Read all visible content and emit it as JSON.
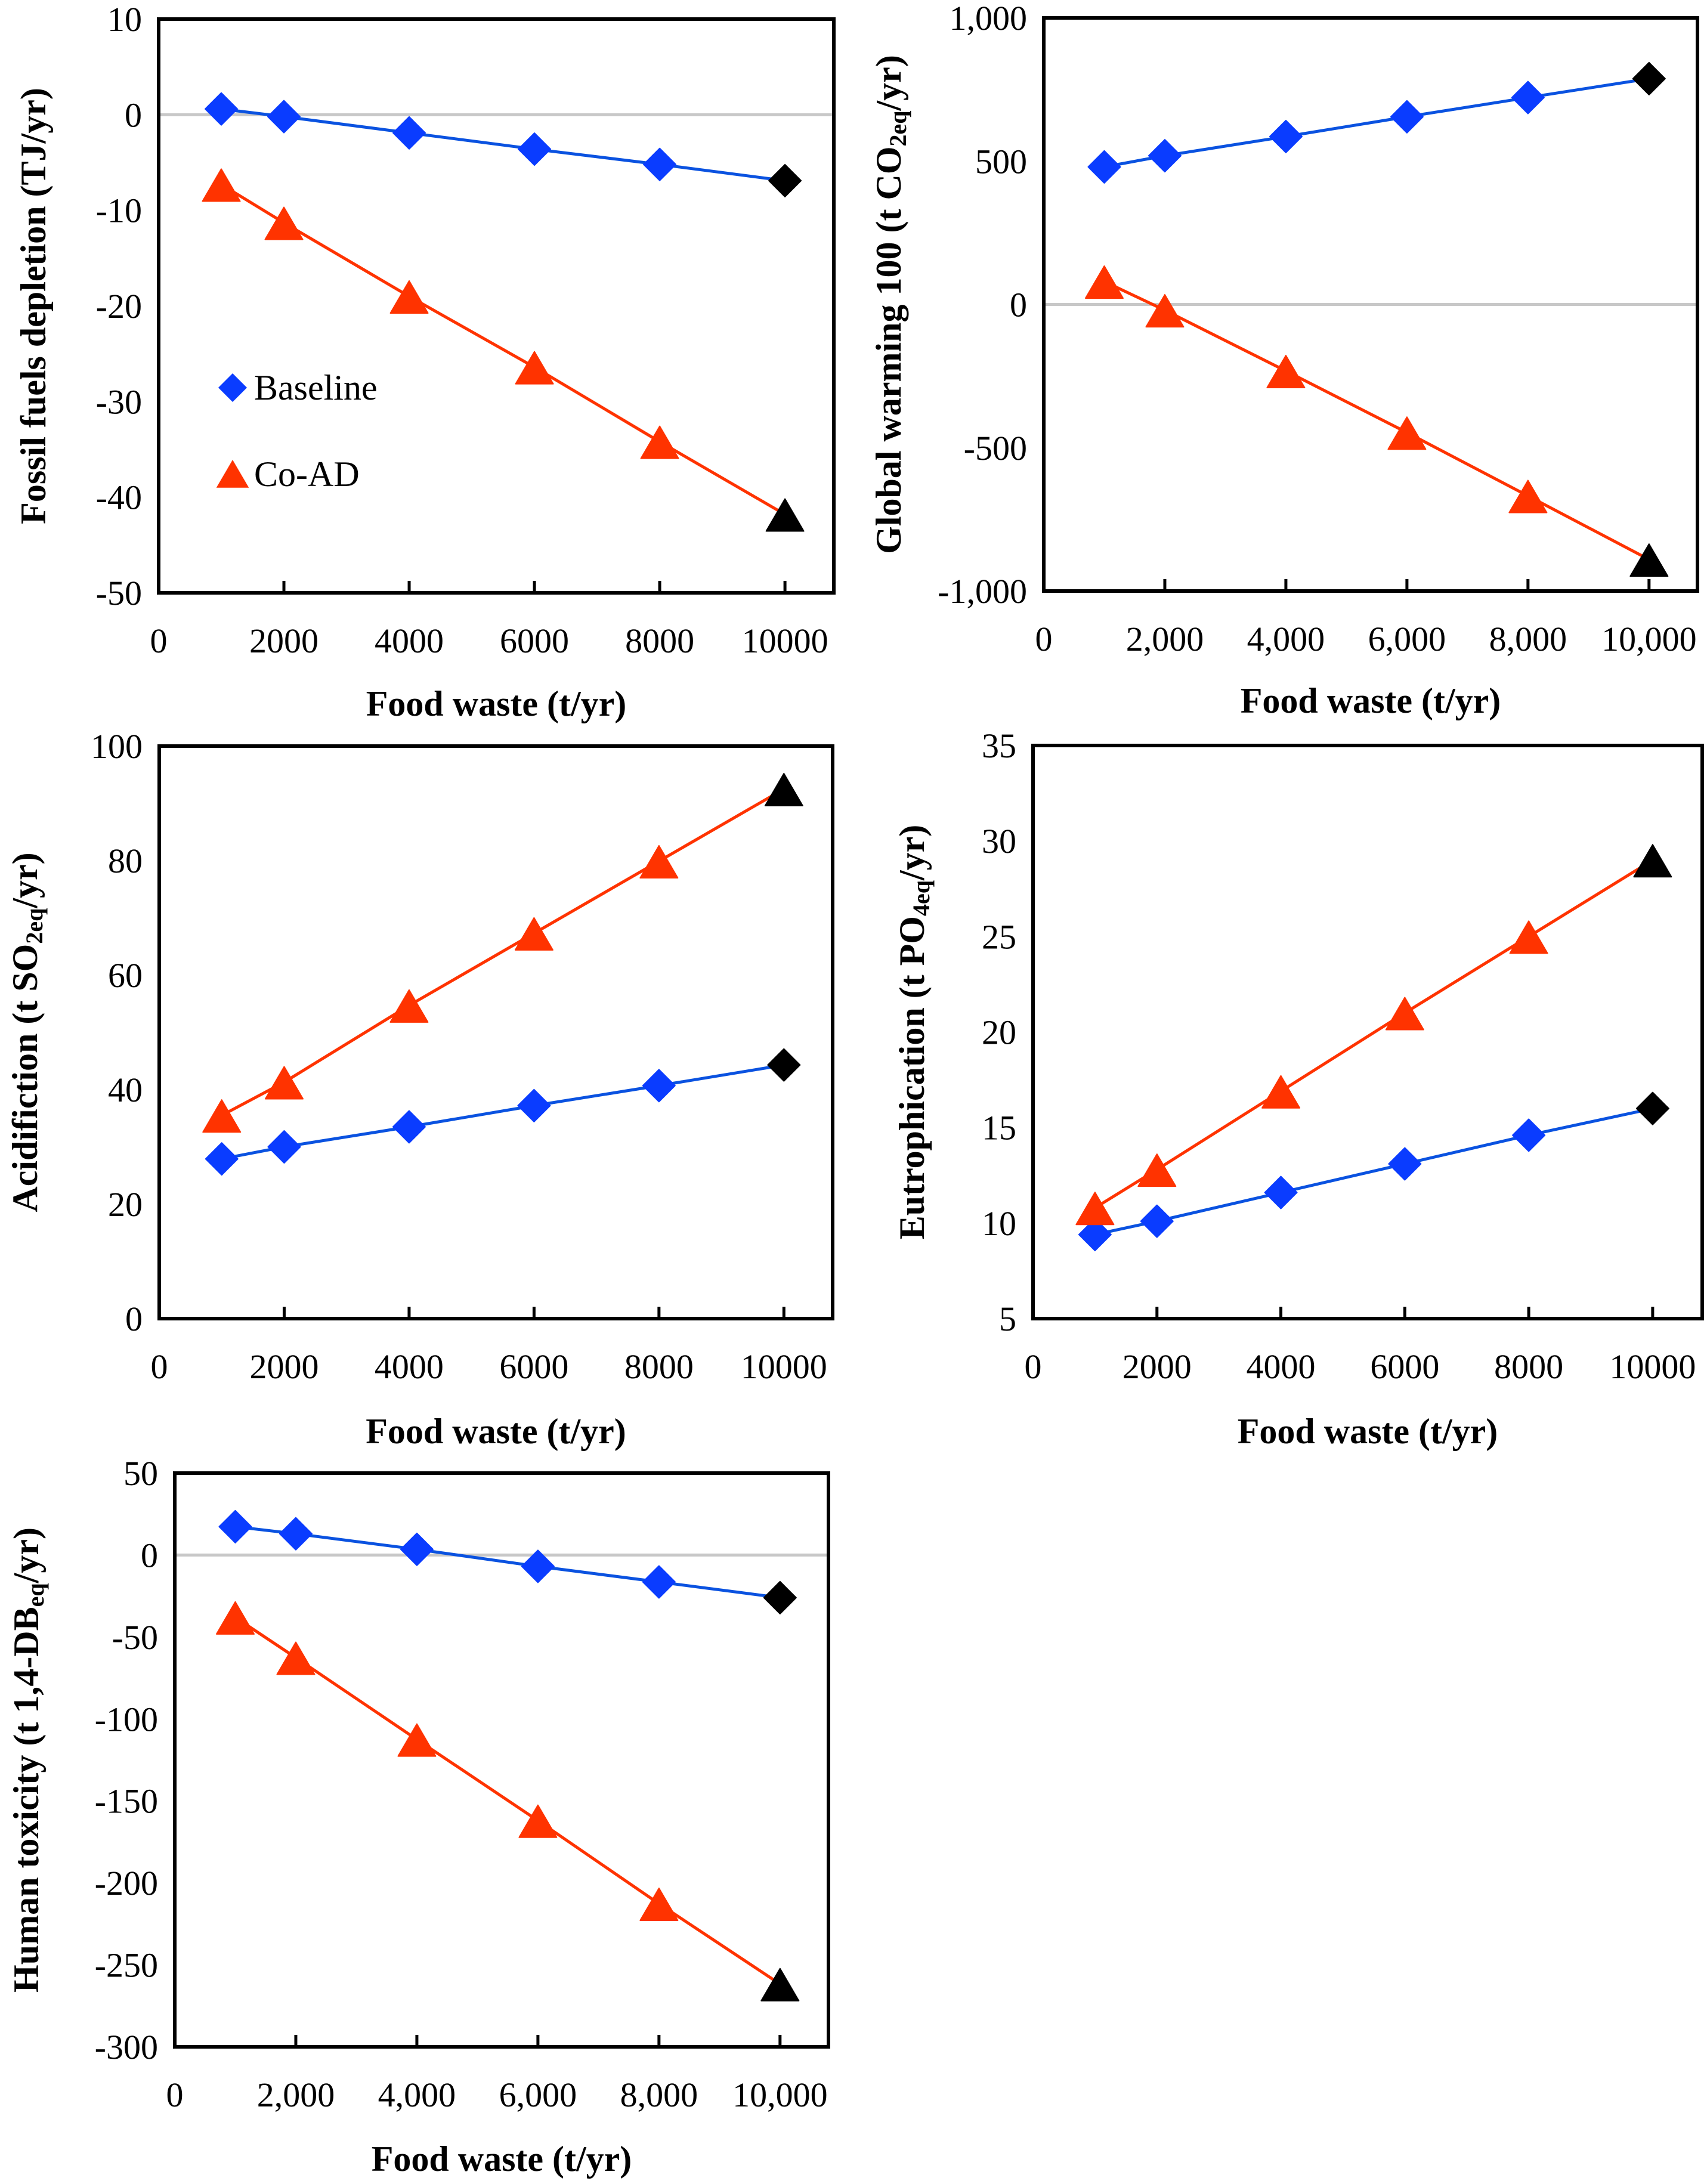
{
  "figure": {
    "colors": {
      "baseline": "#0a3cff",
      "baseline_line": "#0a52e0",
      "coad": "#ff3300",
      "highlight": "#000000",
      "zero_line": "#c8c8c8",
      "frame": "#000000"
    },
    "legend": {
      "items": [
        {
          "label": "Baseline",
          "marker": "diamond"
        },
        {
          "label": "Co-AD",
          "marker": "triangle"
        }
      ]
    }
  },
  "chart_data": [
    {
      "id": "fossil",
      "type": "line",
      "title": "",
      "xlabel": "Food waste (t/yr)",
      "ylabel": {
        "pre": "Fossil fuels depletion (TJ/yr)",
        "sub": "",
        "post": ""
      },
      "xlim": [
        0,
        10780
      ],
      "ylim": [
        -50,
        10
      ],
      "xticks": [
        0,
        2000,
        4000,
        6000,
        8000,
        10000
      ],
      "xtick_labels": [
        "0",
        "2000",
        "4000",
        "6000",
        "8000",
        "10000"
      ],
      "yticks": [
        10,
        0,
        -10,
        -20,
        -30,
        -40,
        -50
      ],
      "ytick_labels": [
        "10",
        "0",
        "-10",
        "-20",
        "-30",
        "-40",
        "-50"
      ],
      "zero_line": true,
      "legend": "inside-left",
      "x": [
        1000,
        2000,
        4000,
        6000,
        8000,
        10000
      ],
      "series": [
        {
          "name": "Baseline",
          "marker": "diamond",
          "values": [
            0.6,
            -0.2,
            -1.9,
            -3.6,
            -5.2,
            -6.9
          ]
        },
        {
          "name": "Co-AD",
          "marker": "triangle",
          "values": [
            -7.3,
            -11.3,
            -19.0,
            -26.4,
            -34.2,
            -41.8
          ]
        }
      ],
      "highlight_last_point": true
    },
    {
      "id": "gwp",
      "type": "line",
      "title": "",
      "xlabel": "Food waste (t/yr)",
      "ylabel": {
        "pre": "Global warming 100 (t CO",
        "sub": "2eq",
        "post": "/yr)"
      },
      "xlim": [
        0,
        10800
      ],
      "ylim": [
        -1000,
        1000
      ],
      "xticks": [
        0,
        2000,
        4000,
        6000,
        8000,
        10000
      ],
      "xtick_labels": [
        "0",
        "2,000",
        "4,000",
        "6,000",
        "8,000",
        "10,000"
      ],
      "yticks": [
        1000,
        500,
        0,
        -500,
        -1000
      ],
      "ytick_labels": [
        "1,000",
        "500",
        "0",
        "-500",
        "-1,000"
      ],
      "zero_line": true,
      "x": [
        1000,
        2000,
        4000,
        6000,
        8000,
        10000
      ],
      "series": [
        {
          "name": "Baseline",
          "marker": "diamond",
          "values": [
            480,
            519,
            586,
            655,
            722,
            788
          ]
        },
        {
          "name": "Co-AD",
          "marker": "triangle",
          "values": [
            80,
            -20,
            -232,
            -447,
            -668,
            -890
          ]
        }
      ],
      "highlight_last_point": true
    },
    {
      "id": "acid",
      "type": "line",
      "title": "",
      "xlabel": "Food waste (t/yr)",
      "ylabel": {
        "pre": "Acidifiction (t SO",
        "sub": "2eq",
        "post": "/yr)"
      },
      "xlim": [
        0,
        10780
      ],
      "ylim": [
        0,
        100
      ],
      "xticks": [
        0,
        2000,
        4000,
        6000,
        8000,
        10000
      ],
      "xtick_labels": [
        "0",
        "2000",
        "4000",
        "6000",
        "8000",
        "10000"
      ],
      "yticks": [
        100,
        80,
        60,
        40,
        20,
        0
      ],
      "ytick_labels": [
        "100",
        "80",
        "60",
        "40",
        "20",
        "0"
      ],
      "zero_line": false,
      "x": [
        1000,
        2000,
        4000,
        6000,
        8000,
        10000
      ],
      "series": [
        {
          "name": "Baseline",
          "marker": "diamond",
          "values": [
            27.9,
            30.0,
            33.5,
            37.2,
            40.7,
            44.3
          ]
        },
        {
          "name": "Co-AD",
          "marker": "triangle",
          "values": [
            35.5,
            41.3,
            54.7,
            67.3,
            79.9,
            92.5
          ]
        }
      ],
      "highlight_last_point": true
    },
    {
      "id": "eutro",
      "type": "line",
      "title": "",
      "xlabel": "Food waste (t/yr)",
      "ylabel": {
        "pre": "Eutrophication (t PO",
        "sub": "4eq",
        "post": "/yr)"
      },
      "xlim": [
        0,
        10800
      ],
      "ylim": [
        5,
        35
      ],
      "xticks": [
        0,
        2000,
        4000,
        6000,
        8000,
        10000
      ],
      "xtick_labels": [
        "0",
        "2000",
        "4000",
        "6000",
        "8000",
        "10000"
      ],
      "yticks": [
        35,
        30,
        25,
        20,
        15,
        10,
        5
      ],
      "ytick_labels": [
        "35",
        "30",
        "25",
        "20",
        "15",
        "10",
        "5"
      ],
      "zero_line": false,
      "x": [
        1000,
        2000,
        4000,
        6000,
        8000,
        10000
      ],
      "series": [
        {
          "name": "Baseline",
          "marker": "diamond",
          "values": [
            9.4,
            10.1,
            11.6,
            13.1,
            14.6,
            16.0
          ]
        },
        {
          "name": "Co-AD",
          "marker": "triangle",
          "values": [
            10.8,
            12.8,
            16.9,
            21.0,
            25.0,
            29.0
          ]
        }
      ],
      "highlight_last_point": true
    },
    {
      "id": "htox",
      "type": "line",
      "title": "",
      "xlabel": "Food waste (t/yr)",
      "ylabel": {
        "pre": "Human toxicity (t 1,4-DB",
        "sub": "eq",
        "post": "/yr)"
      },
      "xlim": [
        0,
        10800
      ],
      "ylim": [
        -300,
        50
      ],
      "xticks": [
        0,
        2000,
        4000,
        6000,
        8000,
        10000
      ],
      "xtick_labels": [
        "0",
        "2,000",
        "4,000",
        "6,000",
        "8,000",
        "10,000"
      ],
      "yticks": [
        50,
        0,
        -50,
        -100,
        -150,
        -200,
        -250,
        -300
      ],
      "ytick_labels": [
        "50",
        "0",
        "-50",
        "-100",
        "-150",
        "-200",
        "-250",
        "-300"
      ],
      "zero_line": true,
      "x": [
        1000,
        2000,
        4000,
        6000,
        8000,
        10000
      ],
      "series": [
        {
          "name": "Baseline",
          "marker": "diamond",
          "values": [
            17.3,
            13.0,
            3.5,
            -6.9,
            -16.4,
            -26.0
          ]
        },
        {
          "name": "Co-AD",
          "marker": "triangle",
          "values": [
            -38.0,
            -62.6,
            -112.5,
            -162.0,
            -212.7,
            -261.7
          ]
        }
      ],
      "highlight_last_point": true
    }
  ]
}
